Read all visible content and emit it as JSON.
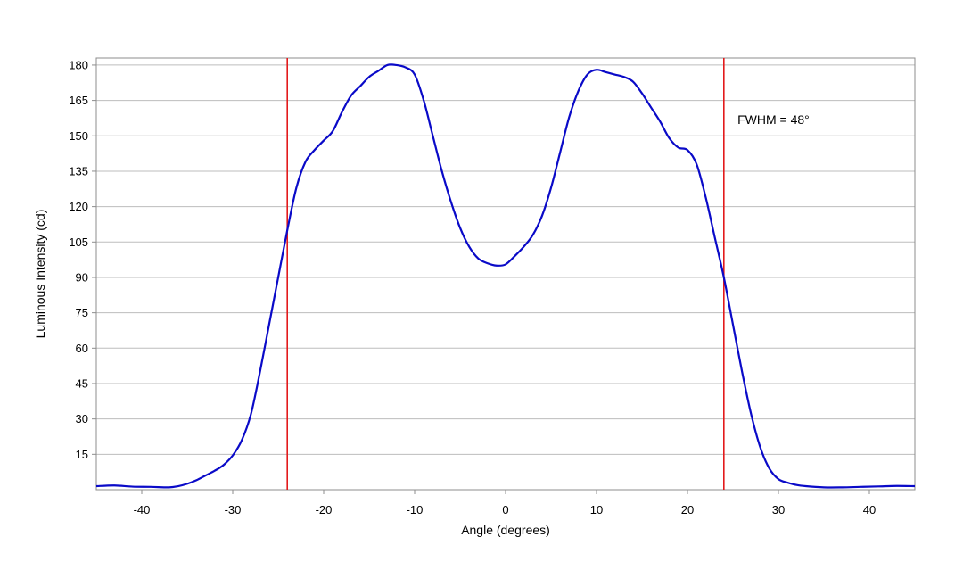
{
  "chart_data": {
    "type": "line",
    "title": "",
    "xlabel": "Angle (degrees)",
    "ylabel": "Luminous Intensity (cd)",
    "xlim": [
      -45,
      45
    ],
    "ylim": [
      0,
      183
    ],
    "xticks": [
      -40,
      -30,
      -20,
      -10,
      0,
      10,
      20,
      30,
      40
    ],
    "yticks": [
      15,
      30,
      45,
      60,
      75,
      90,
      105,
      120,
      135,
      150,
      165,
      180
    ],
    "grid": {
      "horizontal": true,
      "vertical": false
    },
    "annotation": {
      "text": "FWHM = 48°",
      "x": 25.5,
      "y": 157
    },
    "vlines": [
      {
        "x": -24,
        "color": "#e31a1c"
      },
      {
        "x": 24,
        "color": "#e31a1c"
      }
    ],
    "series": [
      {
        "color": "#0a0ac8",
        "x": [
          -45,
          -43,
          -41,
          -39,
          -37,
          -36,
          -35,
          -34,
          -33,
          -32,
          -31,
          -30,
          -29,
          -28,
          -27,
          -26,
          -25,
          -24,
          -23,
          -22,
          -21,
          -20,
          -19,
          -18,
          -17,
          -16,
          -15,
          -14,
          -13,
          -12,
          -11,
          -10,
          -9,
          -8,
          -7,
          -6,
          -5,
          -4,
          -3,
          -2,
          -1,
          0,
          1,
          2,
          3,
          4,
          5,
          6,
          7,
          8,
          9,
          10,
          11,
          12,
          13,
          14,
          15,
          16,
          17,
          18,
          19,
          20,
          21,
          22,
          23,
          24,
          25,
          26,
          27,
          28,
          29,
          30,
          31,
          32,
          33,
          35,
          37,
          39,
          41,
          43,
          45
        ],
        "y": [
          1.5,
          1.8,
          1.3,
          1.2,
          1.0,
          1.5,
          2.5,
          4.0,
          6.0,
          8.0,
          10.5,
          14.5,
          21,
          32,
          50,
          70,
          90,
          110,
          128,
          139,
          144,
          148,
          152,
          160,
          167,
          171,
          175,
          177.5,
          180,
          180,
          179,
          176,
          165,
          150,
          135,
          122,
          111,
          103,
          98,
          96,
          95,
          95.5,
          99,
          103,
          108,
          116,
          128,
          143,
          158,
          169,
          176,
          178,
          177,
          176,
          175,
          173,
          168,
          162,
          156,
          149,
          145,
          144,
          138,
          124,
          107,
          90,
          70,
          50,
          32,
          18,
          9,
          4.5,
          3.0,
          2.0,
          1.5,
          1.0,
          1.0,
          1.2,
          1.4,
          1.6,
          1.5
        ]
      }
    ]
  }
}
